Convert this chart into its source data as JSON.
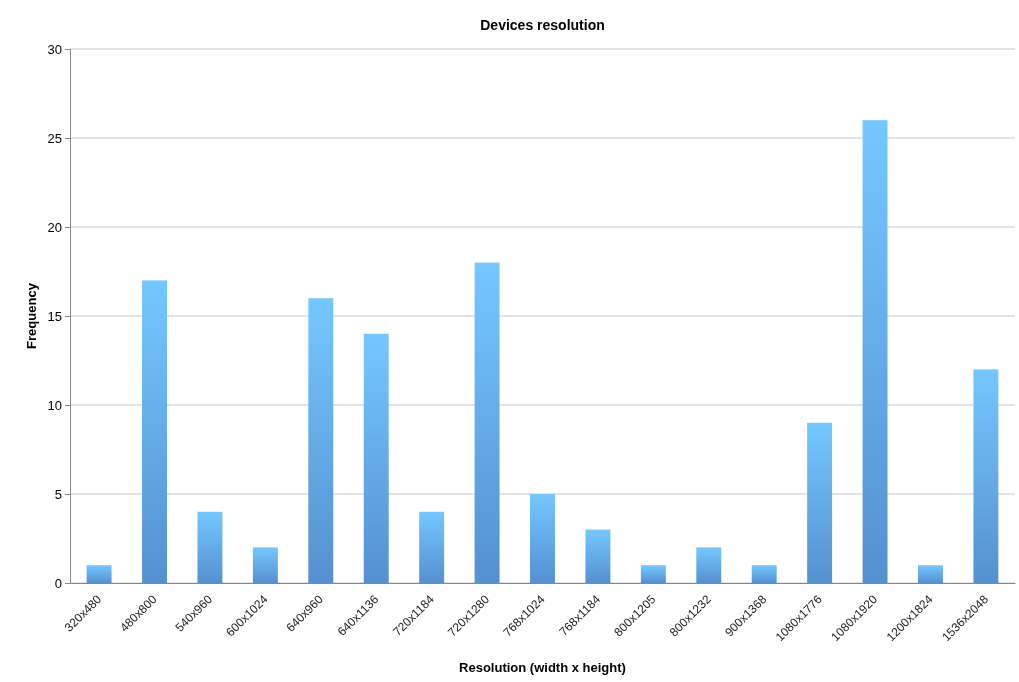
{
  "chart_data": {
    "type": "bar",
    "title": "Devices resolution",
    "xlabel": "Resolution (width x height)",
    "ylabel": "Frequency",
    "categories": [
      "320x480",
      "480x800",
      "540x960",
      "600x1024",
      "640x960",
      "640x1136",
      "720x1184",
      "720x1280",
      "768x1024",
      "768x1184",
      "800x1205",
      "800x1232",
      "900x1368",
      "1080x1776",
      "1080x1920",
      "1200x1824",
      "1536x2048"
    ],
    "values": [
      1,
      17,
      4,
      2,
      16,
      14,
      4,
      18,
      5,
      3,
      1,
      2,
      1,
      9,
      26,
      1,
      12
    ],
    "color": "#5b9be0",
    "ylim": [
      0,
      30
    ],
    "yticks": [
      0,
      5,
      10,
      15,
      20,
      25,
      30
    ],
    "grid": "y"
  }
}
